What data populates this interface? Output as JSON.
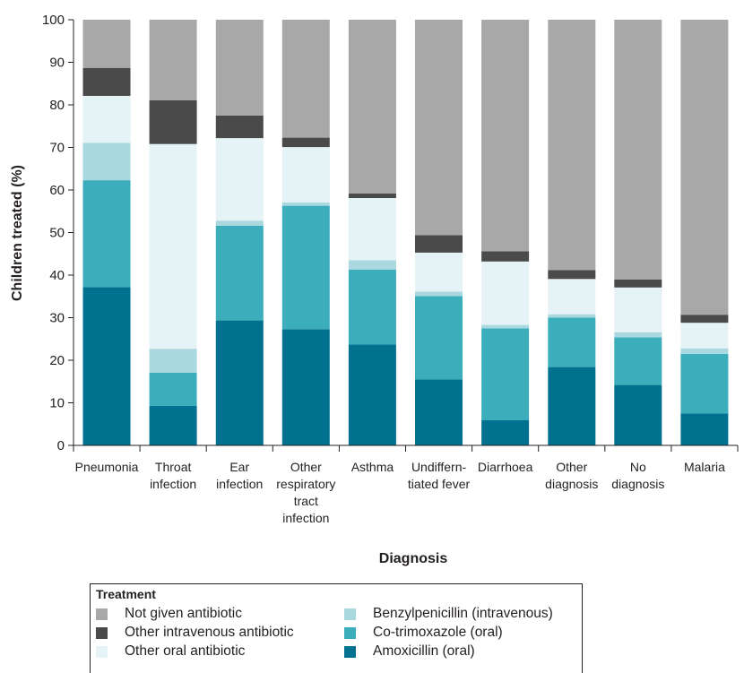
{
  "chart_data": {
    "type": "bar",
    "stacked": true,
    "xlabel": "Diagnosis",
    "ylabel": "Children treated (%)",
    "ylim": [
      0,
      100
    ],
    "yticks": [
      0,
      10,
      20,
      30,
      40,
      50,
      60,
      70,
      80,
      90,
      100
    ],
    "grid": false,
    "legend_title": "Treatment",
    "legend_position": "bottom",
    "categories": [
      [
        "Pneumonia"
      ],
      [
        "Throat",
        "infection"
      ],
      [
        "Ear",
        "infection"
      ],
      [
        "Other",
        "respiratory",
        "tract",
        "infection"
      ],
      [
        "Asthma"
      ],
      [
        "Undiffern-",
        "tiated fever"
      ],
      [
        "Diarrhoea"
      ],
      [
        "Other",
        "diagnosis"
      ],
      [
        "No",
        "diagnosis"
      ],
      [
        "Malaria"
      ]
    ],
    "series": [
      {
        "name": "Amoxicillin (oral)",
        "color": "#00718f",
        "values": [
          37.2,
          9.3,
          29.4,
          27.3,
          23.7,
          15.5,
          5.9,
          18.4,
          14.2,
          7.5
        ]
      },
      {
        "name": "Co-trimoxazole (oral)",
        "color": "#3cadbb",
        "values": [
          25.1,
          7.8,
          22.2,
          29.0,
          17.6,
          19.6,
          21.6,
          11.6,
          11.2,
          14.0
        ]
      },
      {
        "name": "Benzylpenicillin (intravenous)",
        "color": "#a9d8de",
        "values": [
          8.8,
          5.6,
          1.2,
          0.8,
          2.2,
          1.0,
          0.8,
          0.8,
          1.2,
          1.3
        ]
      },
      {
        "name": "Other oral antibiotic",
        "color": "#e5f2f6",
        "values": [
          11.0,
          48.1,
          19.4,
          13.0,
          14.6,
          9.2,
          14.9,
          8.3,
          10.5,
          6.0
        ]
      },
      {
        "name": "Other intravenous antibiotic",
        "color": "#4a4a4a",
        "values": [
          6.6,
          10.3,
          5.3,
          2.2,
          1.1,
          4.1,
          2.4,
          2.1,
          1.9,
          1.9
        ]
      },
      {
        "name": "Not given antibiotic",
        "color": "#a8a8a8",
        "values": [
          11.3,
          18.9,
          22.5,
          27.7,
          40.8,
          50.6,
          54.4,
          58.8,
          61.0,
          69.3
        ]
      }
    ],
    "legend_order": [
      "Not given antibiotic",
      "Benzylpenicillin (intravenous)",
      "Other intravenous antibiotic",
      "Co-trimoxazole (oral)",
      "Other oral antibiotic",
      "Amoxicillin (oral)"
    ]
  }
}
